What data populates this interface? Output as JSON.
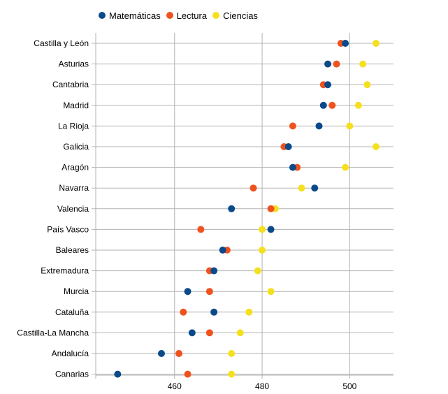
{
  "chart_data": {
    "type": "scatter",
    "orientation": "horizontal-dot-plot",
    "title": "",
    "xlabel": "",
    "ylabel": "",
    "xlim": [
      442,
      510
    ],
    "xticks": [
      460,
      480,
      500
    ],
    "grid": true,
    "legend_position": "top-left",
    "categories": [
      "Castilla y León",
      "Asturias",
      "Cantabria",
      "Madrid",
      "La Rioja",
      "Galicia",
      "Aragón",
      "Navarra",
      "Valencia",
      "País Vasco",
      "Baleares",
      "Extremadura",
      "Murcia",
      "Cataluña",
      "Castilla-La Mancha",
      "Andalucía",
      "Canarias"
    ],
    "series": [
      {
        "name": "Matemáticas",
        "color": "#0a4a8a",
        "values": [
          499,
          495,
          495,
          494,
          493,
          486,
          487,
          492,
          473,
          482,
          471,
          469,
          463,
          469,
          464,
          457,
          447
        ]
      },
      {
        "name": "Lectura",
        "color": "#f0521e",
        "values": [
          498,
          497,
          494,
          496,
          487,
          485,
          488,
          478,
          482,
          466,
          472,
          468,
          468,
          462,
          468,
          461,
          463
        ]
      },
      {
        "name": "Ciencias",
        "color": "#f5e020",
        "values": [
          506,
          503,
          504,
          502,
          500,
          506,
          499,
          489,
          483,
          480,
          480,
          479,
          482,
          477,
          475,
          473,
          473
        ]
      }
    ]
  }
}
